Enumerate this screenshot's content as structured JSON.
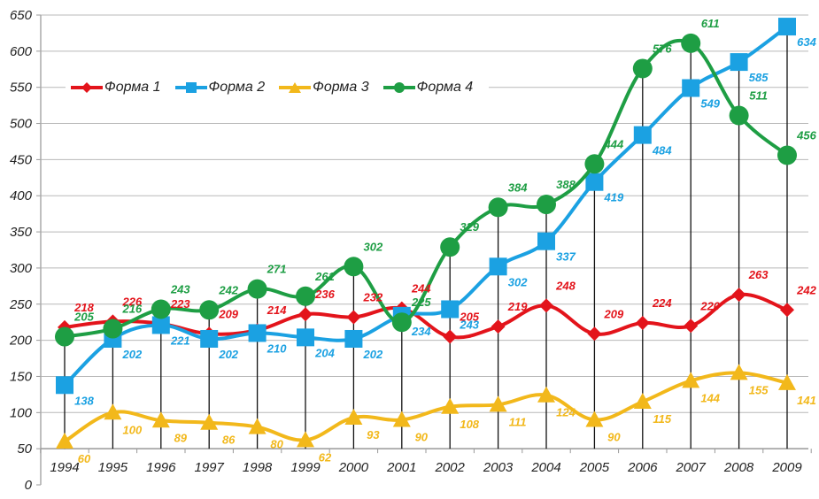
{
  "chart_data": {
    "type": "line",
    "title": "",
    "xlabel": "",
    "ylabel": "",
    "x": [
      "1994",
      "1995",
      "1996",
      "1997",
      "1998",
      "1999",
      "2000",
      "2001",
      "2002",
      "2003",
      "2004",
      "2005",
      "2006",
      "2007",
      "2008",
      "2009"
    ],
    "y_ticks": [
      "0",
      "50",
      "100",
      "150",
      "200",
      "250",
      "300",
      "350",
      "400",
      "450",
      "500",
      "550",
      "600",
      "650"
    ],
    "ylim": [
      0,
      650
    ],
    "x_axis_crosses_at": 50,
    "grid": true,
    "drop_lines": true,
    "legend_position": "top-left",
    "series": [
      {
        "name": "Форма 1",
        "color": "#e3141b",
        "marker": "diamond",
        "values": [
          218,
          226,
          223,
          209,
          214,
          236,
          232,
          244,
          205,
          219,
          248,
          209,
          224,
          220,
          263,
          242
        ]
      },
      {
        "name": "Форма 2",
        "color": "#1ba1e2",
        "marker": "square",
        "values": [
          138,
          202,
          221,
          202,
          210,
          204,
          202,
          234,
          243,
          302,
          337,
          419,
          484,
          549,
          585,
          634
        ]
      },
      {
        "name": "Форма 3",
        "color": "#f2b81b",
        "marker": "triangle",
        "values": [
          60,
          100,
          89,
          86,
          80,
          62,
          93,
          90,
          108,
          111,
          124,
          90,
          115,
          144,
          155,
          141
        ]
      },
      {
        "name": "Форма 4",
        "color": "#1e9e44",
        "marker": "circle",
        "values": [
          205,
          216,
          243,
          242,
          271,
          261,
          302,
          225,
          329,
          384,
          388,
          444,
          576,
          611,
          511,
          456
        ]
      }
    ]
  }
}
